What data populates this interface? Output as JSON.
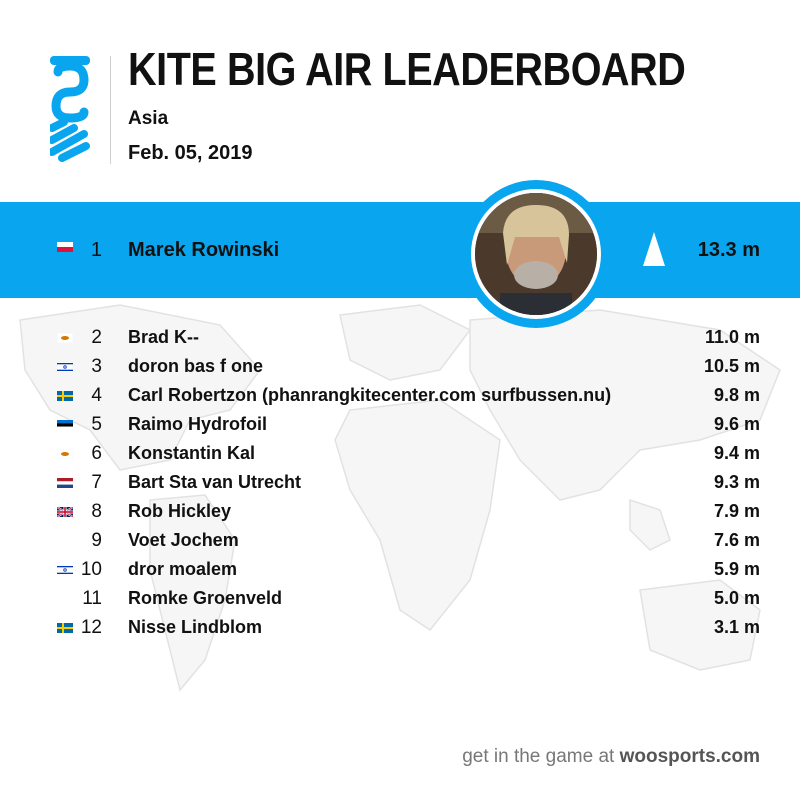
{
  "header": {
    "title": "KITE BIG AIR LEADERBOARD",
    "region": "Asia",
    "date": "Feb. 05, 2019",
    "accent_color": "#0aa5ef"
  },
  "leader": {
    "rank": "1",
    "name": "Marek Rowinski",
    "value": "13.3 m",
    "flag": "flag-poland-icon",
    "avatar": "rider-photo"
  },
  "rows": [
    {
      "rank": "2",
      "name": "Brad K--",
      "value": "11.0 m",
      "flag": "flag-cyprus-icon"
    },
    {
      "rank": "3",
      "name": "doron bas  f one",
      "value": "10.5 m",
      "flag": "flag-israel-icon"
    },
    {
      "rank": "4",
      "name": "Carl Robertzon (phanrangkitecenter.com surfbussen.nu)",
      "value": "9.8 m",
      "flag": "flag-sweden-icon"
    },
    {
      "rank": "5",
      "name": "Raimo Hydrofoil",
      "value": "9.6 m",
      "flag": "flag-estonia-icon"
    },
    {
      "rank": "6",
      "name": "Konstantin Kal",
      "value": "9.4 m",
      "flag": "flag-cyprus-icon"
    },
    {
      "rank": "7",
      "name": "Bart Sta van Utrecht",
      "value": "9.3 m",
      "flag": "flag-netherlands-icon"
    },
    {
      "rank": "8",
      "name": "Rob Hickley",
      "value": "7.9 m",
      "flag": "flag-uk-icon"
    },
    {
      "rank": "9",
      "name": "Voet Jochem",
      "value": "7.6 m",
      "flag": ""
    },
    {
      "rank": "10",
      "name": "dror moalem",
      "value": "5.9 m",
      "flag": "flag-israel-icon"
    },
    {
      "rank": "11",
      "name": "Romke Groenveld",
      "value": "5.0 m",
      "flag": ""
    },
    {
      "rank": "12",
      "name": "Nisse Lindblom",
      "value": "3.1 m",
      "flag": "flag-sweden-icon"
    }
  ],
  "footer": {
    "prefix": "get in the game at ",
    "brand": "woosports.com"
  }
}
